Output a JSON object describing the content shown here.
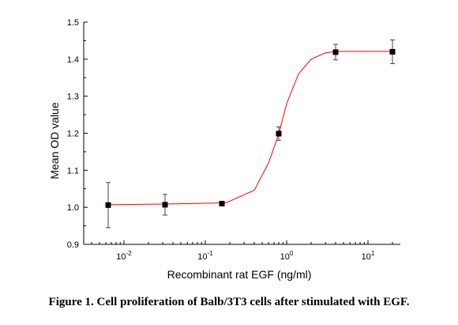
{
  "chart_data": {
    "type": "scatter",
    "xlabel": "Recombinant rat EGF (ng/ml)",
    "ylabel": "Mean OD value",
    "x_scale": "log",
    "xlim": [
      0.0032,
      25
    ],
    "ylim": [
      0.9,
      1.5
    ],
    "y_ticks": [
      "0.9",
      "1.0",
      "1.1",
      "1.2",
      "1.3",
      "1.4",
      "1.5"
    ],
    "x_ticks": [
      {
        "value": 0.01,
        "base": "10",
        "exp": "-2"
      },
      {
        "value": 0.1,
        "base": "10",
        "exp": "-1"
      },
      {
        "value": 1,
        "base": "10",
        "exp": "0"
      },
      {
        "value": 10,
        "base": "10",
        "exp": "1"
      }
    ],
    "series": [
      {
        "points": [
          {
            "x": 0.0064,
            "y": 1.006,
            "err": 0.061
          },
          {
            "x": 0.032,
            "y": 1.007,
            "err": 0.028
          },
          {
            "x": 0.16,
            "y": 1.01,
            "err": 0.004
          },
          {
            "x": 0.8,
            "y": 1.199,
            "err": 0.018
          },
          {
            "x": 4.0,
            "y": 1.419,
            "err": 0.021
          },
          {
            "x": 20.0,
            "y": 1.42,
            "err": 0.032
          }
        ],
        "marker_color": "#000000",
        "fit_color": "#ff0000"
      }
    ],
    "fit_curve": [
      [
        0.0064,
        1.007
      ],
      [
        0.032,
        1.009
      ],
      [
        0.18,
        1.012
      ],
      [
        0.4,
        1.046
      ],
      [
        0.6,
        1.12
      ],
      [
        0.8,
        1.198
      ],
      [
        1.0,
        1.28
      ],
      [
        1.4,
        1.36
      ],
      [
        2.0,
        1.4
      ],
      [
        3.0,
        1.417
      ],
      [
        4.0,
        1.421
      ],
      [
        20.0,
        1.421
      ]
    ]
  },
  "caption": "Figure 1. Cell proliferation of Balb/3T3 cells after stimulated with EGF."
}
